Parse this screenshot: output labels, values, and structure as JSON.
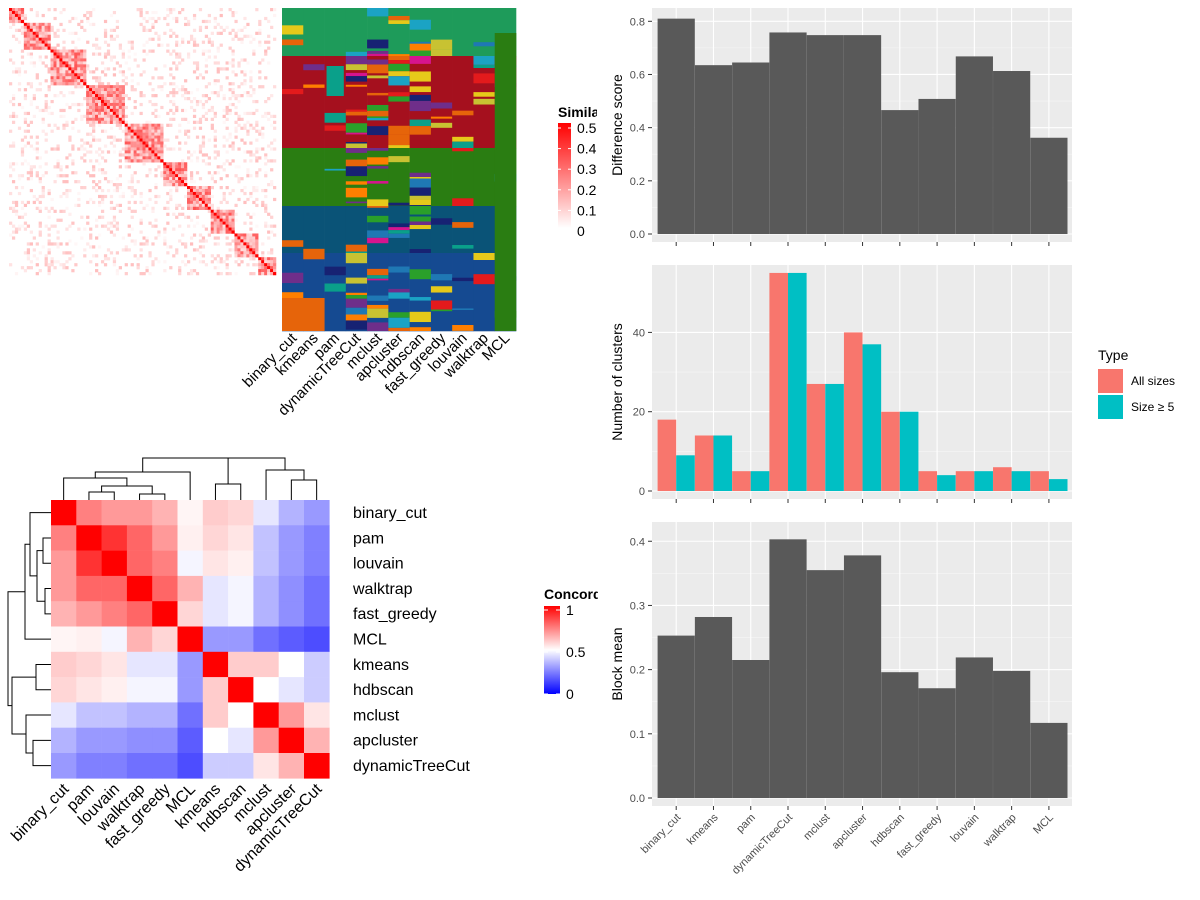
{
  "chart_data": [
    {
      "id": "similarity_heatmap",
      "type": "heatmap",
      "legend": {
        "title": "Similarity",
        "ticks": [
          "0.5",
          "0.4",
          "0.3",
          "0.2",
          "0.1",
          "0"
        ],
        "range": [
          0,
          0.5
        ],
        "colors": [
          "#ffffff",
          "#ff0000"
        ]
      },
      "methods": [
        "binary_cut",
        "kmeans",
        "pam",
        "dynamicTreeCut",
        "mclust",
        "apcluster",
        "hdbscan",
        "fast_greedy",
        "louvain",
        "walktrap",
        "MCL"
      ]
    },
    {
      "id": "difference_score",
      "type": "bar",
      "ylabel": "Difference score",
      "ylim": [
        0,
        0.85
      ],
      "yticks": [
        "0.0",
        "0.2",
        "0.4",
        "0.6",
        "0.8"
      ],
      "categories": [
        "binary_cut",
        "kmeans",
        "pam",
        "dynamicTreeCut",
        "mclust",
        "apcluster",
        "hdbscan",
        "fast_greedy",
        "louvain",
        "walktrap",
        "MCL"
      ],
      "values": [
        0.81,
        0.635,
        0.645,
        0.758,
        0.748,
        0.748,
        0.466,
        0.508,
        0.668,
        0.613,
        0.362
      ],
      "color": "#595959"
    },
    {
      "id": "number_of_clusters",
      "type": "bar",
      "ylabel": "Number of clusters",
      "ylim": [
        0,
        57
      ],
      "yticks": [
        "0",
        "20",
        "40"
      ],
      "categories": [
        "binary_cut",
        "kmeans",
        "pam",
        "dynamicTreeCut",
        "mclust",
        "apcluster",
        "hdbscan",
        "fast_greedy",
        "louvain",
        "walktrap",
        "MCL"
      ],
      "series": [
        {
          "name": "All sizes",
          "color": "#F8766D",
          "values": [
            18,
            14,
            5,
            55,
            27,
            40,
            20,
            5,
            5,
            6,
            5
          ]
        },
        {
          "name": "Size ≥ 5",
          "color": "#00BFC4",
          "values": [
            9,
            14,
            5,
            55,
            27,
            37,
            20,
            4,
            5,
            5,
            3
          ]
        }
      ],
      "legend": {
        "title": "Type",
        "position": "right"
      }
    },
    {
      "id": "block_mean",
      "type": "bar",
      "ylabel": "Block mean",
      "ylim": [
        0,
        0.43
      ],
      "yticks": [
        "0.0",
        "0.1",
        "0.2",
        "0.3",
        "0.4"
      ],
      "categories": [
        "binary_cut",
        "kmeans",
        "pam",
        "dynamicTreeCut",
        "mclust",
        "apcluster",
        "hdbscan",
        "fast_greedy",
        "louvain",
        "walktrap",
        "MCL"
      ],
      "values": [
        0.253,
        0.282,
        0.215,
        0.403,
        0.355,
        0.378,
        0.196,
        0.171,
        0.219,
        0.198,
        0.117
      ],
      "color": "#595959"
    },
    {
      "id": "concordance_heatmap",
      "type": "heatmap",
      "legend": {
        "title": "Concordance",
        "ticks": [
          "1",
          "0.5",
          "0"
        ],
        "range": [
          0,
          1
        ]
      },
      "labels": [
        "binary_cut",
        "pam",
        "louvain",
        "walktrap",
        "fast_greedy",
        "MCL",
        "kmeans",
        "hdbscan",
        "mclust",
        "apcluster",
        "dynamicTreeCut"
      ],
      "matrix": [
        [
          1.0,
          0.75,
          0.7,
          0.7,
          0.65,
          0.52,
          0.6,
          0.58,
          0.45,
          0.35,
          0.3
        ],
        [
          0.75,
          1.0,
          0.9,
          0.8,
          0.7,
          0.53,
          0.58,
          0.55,
          0.38,
          0.3,
          0.25
        ],
        [
          0.7,
          0.9,
          1.0,
          0.8,
          0.75,
          0.48,
          0.55,
          0.53,
          0.38,
          0.3,
          0.25
        ],
        [
          0.7,
          0.8,
          0.8,
          1.0,
          0.8,
          0.65,
          0.45,
          0.48,
          0.35,
          0.28,
          0.22
        ],
        [
          0.65,
          0.7,
          0.75,
          0.8,
          1.0,
          0.58,
          0.45,
          0.48,
          0.35,
          0.28,
          0.22
        ],
        [
          0.52,
          0.53,
          0.48,
          0.65,
          0.58,
          1.0,
          0.3,
          0.3,
          0.22,
          0.18,
          0.15
        ],
        [
          0.6,
          0.58,
          0.55,
          0.45,
          0.45,
          0.3,
          1.0,
          0.6,
          0.6,
          0.5,
          0.4
        ],
        [
          0.58,
          0.55,
          0.53,
          0.48,
          0.48,
          0.3,
          0.6,
          1.0,
          0.5,
          0.45,
          0.4
        ],
        [
          0.45,
          0.38,
          0.38,
          0.35,
          0.35,
          0.22,
          0.6,
          0.5,
          1.0,
          0.7,
          0.55
        ],
        [
          0.35,
          0.3,
          0.3,
          0.28,
          0.28,
          0.18,
          0.5,
          0.45,
          0.7,
          1.0,
          0.65
        ],
        [
          0.3,
          0.25,
          0.25,
          0.22,
          0.22,
          0.15,
          0.4,
          0.4,
          0.55,
          0.65,
          1.0
        ]
      ]
    }
  ]
}
